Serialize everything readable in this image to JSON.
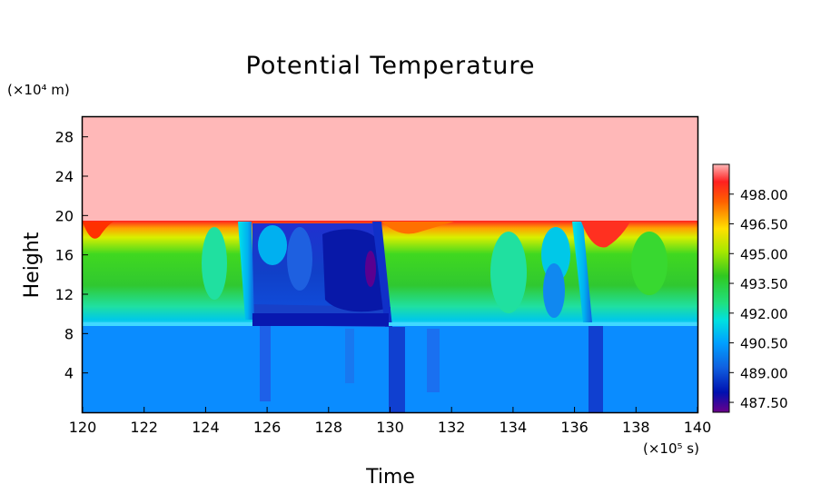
{
  "chart_data": {
    "type": "heatmap",
    "title": "Potential Temperature",
    "xlabel": "Time",
    "ylabel": "Height",
    "x_unit": "(×10⁵ s)",
    "y_unit": "(×10⁴ m)",
    "xlim": [
      120,
      140
    ],
    "ylim": [
      0,
      30
    ],
    "x_ticks": [
      "120",
      "122",
      "124",
      "126",
      "128",
      "130",
      "132",
      "134",
      "136",
      "138",
      "140"
    ],
    "y_ticks": [
      "4",
      "8",
      "12",
      "16",
      "20",
      "24",
      "28"
    ],
    "colorbar": {
      "labels": [
        "498.00",
        "496.50",
        "495.00",
        "493.50",
        "492.00",
        "490.50",
        "489.00",
        "487.50"
      ],
      "range": [
        487.0,
        499.5
      ]
    },
    "regions": [
      {
        "name": "upper layer",
        "height_range": [
          19.5,
          30
        ],
        "value": 499.5
      },
      {
        "name": "middle layer",
        "height_range": [
          9,
          19.5
        ],
        "value_range": [
          487.5,
          498.5
        ]
      },
      {
        "name": "lower layer",
        "height_range": [
          0,
          9
        ],
        "value": 489.5
      }
    ],
    "transitions_x": [
      125.4,
      129.6,
      136.2
    ]
  }
}
